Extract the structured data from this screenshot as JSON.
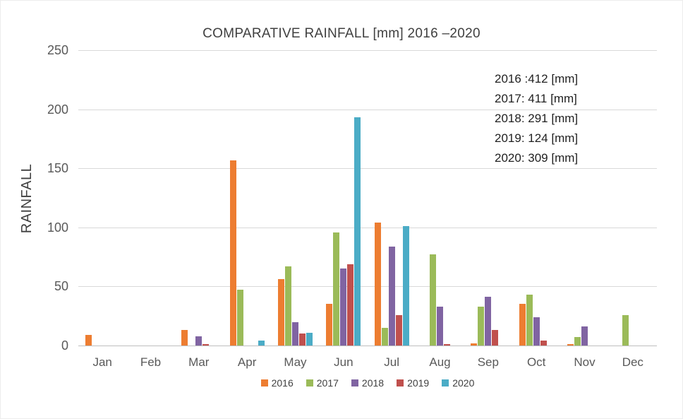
{
  "chart_data": {
    "type": "bar",
    "title": "COMPARATIVE RAINFALL [mm]  2016 –2020",
    "ylabel": "RAINFALL",
    "xlabel": "",
    "ylim": [
      0,
      250
    ],
    "yticks": [
      0,
      50,
      100,
      150,
      200,
      250
    ],
    "grid": "horizontal",
    "legend_position": "bottom",
    "categories": [
      "Jan",
      "Feb",
      "Mar",
      "Apr",
      "May",
      "Jun",
      "Jul",
      "Aug",
      "Sep",
      "Oct",
      "Nov",
      "Dec"
    ],
    "series": [
      {
        "name": "2016",
        "color": "#ED7D31",
        "values": [
          9,
          0,
          13,
          157,
          56,
          35,
          104,
          0,
          2,
          35,
          1,
          0
        ]
      },
      {
        "name": "2017",
        "color": "#9BBB59",
        "values": [
          0,
          0,
          0,
          47,
          67,
          96,
          15,
          77,
          33,
          43,
          7,
          26
        ]
      },
      {
        "name": "2018",
        "color": "#8064A2",
        "values": [
          0,
          0,
          8,
          0,
          20,
          65,
          84,
          33,
          41,
          24,
          16,
          0
        ]
      },
      {
        "name": "2019",
        "color": "#C0504D",
        "values": [
          0,
          0,
          1,
          0,
          10,
          69,
          26,
          1,
          13,
          4,
          0,
          0
        ]
      },
      {
        "name": "2020",
        "color": "#4BACC6",
        "values": [
          0,
          0,
          0,
          4,
          11,
          193,
          101,
          0,
          0,
          0,
          0,
          0
        ]
      }
    ],
    "annotation": [
      "2016 :412 [mm]",
      "2017: 411 [mm]",
      "2018: 291 [mm]",
      "2019: 124 [mm]",
      "2020: 309 [mm]"
    ]
  }
}
